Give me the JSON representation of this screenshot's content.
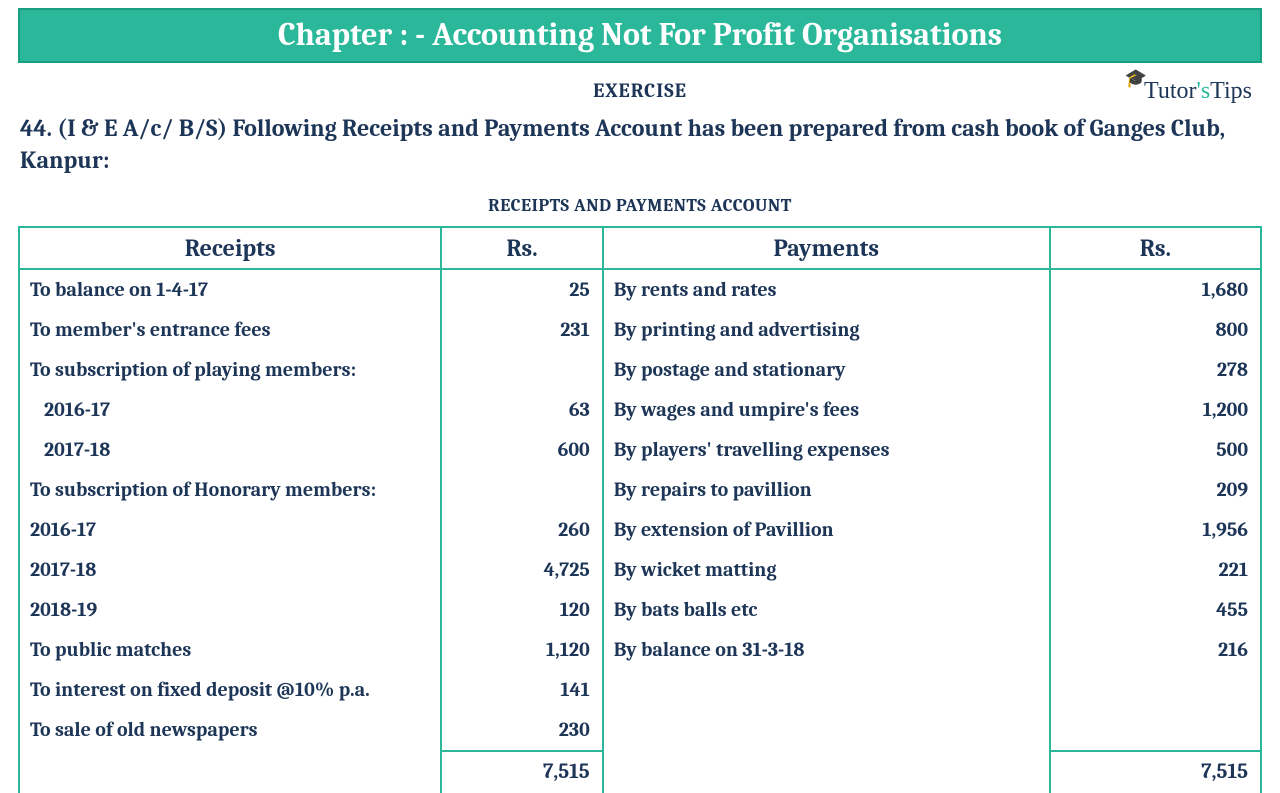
{
  "chapter_title": "Chapter : - Accounting Not For Profit Organisations",
  "exercise_label": "EXERCISE",
  "question": "44. (I & E A/c/ B/S) Following Receipts and Payments Account has been prepared from cash book of Ganges Club, Kanpur:",
  "table_title": "RECEIPTS AND PAYMENTS ACCOUNT",
  "logo": {
    "brand1": "Tutor",
    "apos": "'s",
    "brand2": "Tips"
  },
  "headers": {
    "receipts": "Receipts",
    "rs1": "Rs.",
    "payments": "Payments",
    "rs2": "Rs."
  },
  "rows": [
    {
      "r": "To balance on 1-4-17",
      "rv": "25",
      "p": "By rents and rates",
      "pv": "1,680"
    },
    {
      "r": "To member's entrance fees",
      "rv": "231",
      "p": "By printing and advertising",
      "pv": "800"
    },
    {
      "r": "To subscription of playing members:",
      "rv": "",
      "p": "By postage and stationary",
      "pv": "278"
    },
    {
      "r": "  2016-17",
      "indent": true,
      "rv": "63",
      "p": "By wages and umpire's fees",
      "pv": "1,200"
    },
    {
      "r": "  2017-18",
      "indent": true,
      "rv": "600",
      "p": "By players' travelling expenses",
      "pv": "500"
    },
    {
      "r": "To subscription of Honorary members:",
      "rv": "",
      "p": "By repairs to pavillion",
      "pv": "209"
    },
    {
      "r": "2016-17",
      "rv": "260",
      "p": "By extension of Pavillion",
      "pv": "1,956"
    },
    {
      "r": "2017-18",
      "rv": "4,725",
      "p": "By wicket matting",
      "pv": "221"
    },
    {
      "r": "2018-19",
      "rv": "120",
      "p": "By bats balls etc",
      "pv": "455"
    },
    {
      "r": "To public matches",
      "rv": "1,120",
      "p": "By balance on 31-3-18",
      "pv": "216"
    },
    {
      "r": "To interest on fixed deposit @10% p.a.",
      "rv": "141",
      "p": "",
      "pv": ""
    },
    {
      "r": "To sale of old newspapers",
      "rv": "230",
      "p": "",
      "pv": ""
    }
  ],
  "totals": {
    "left": "7,515",
    "right": "7,515"
  },
  "colors": {
    "accent": "#2bb89a",
    "text": "#1d3557",
    "background": "#ffffff"
  }
}
